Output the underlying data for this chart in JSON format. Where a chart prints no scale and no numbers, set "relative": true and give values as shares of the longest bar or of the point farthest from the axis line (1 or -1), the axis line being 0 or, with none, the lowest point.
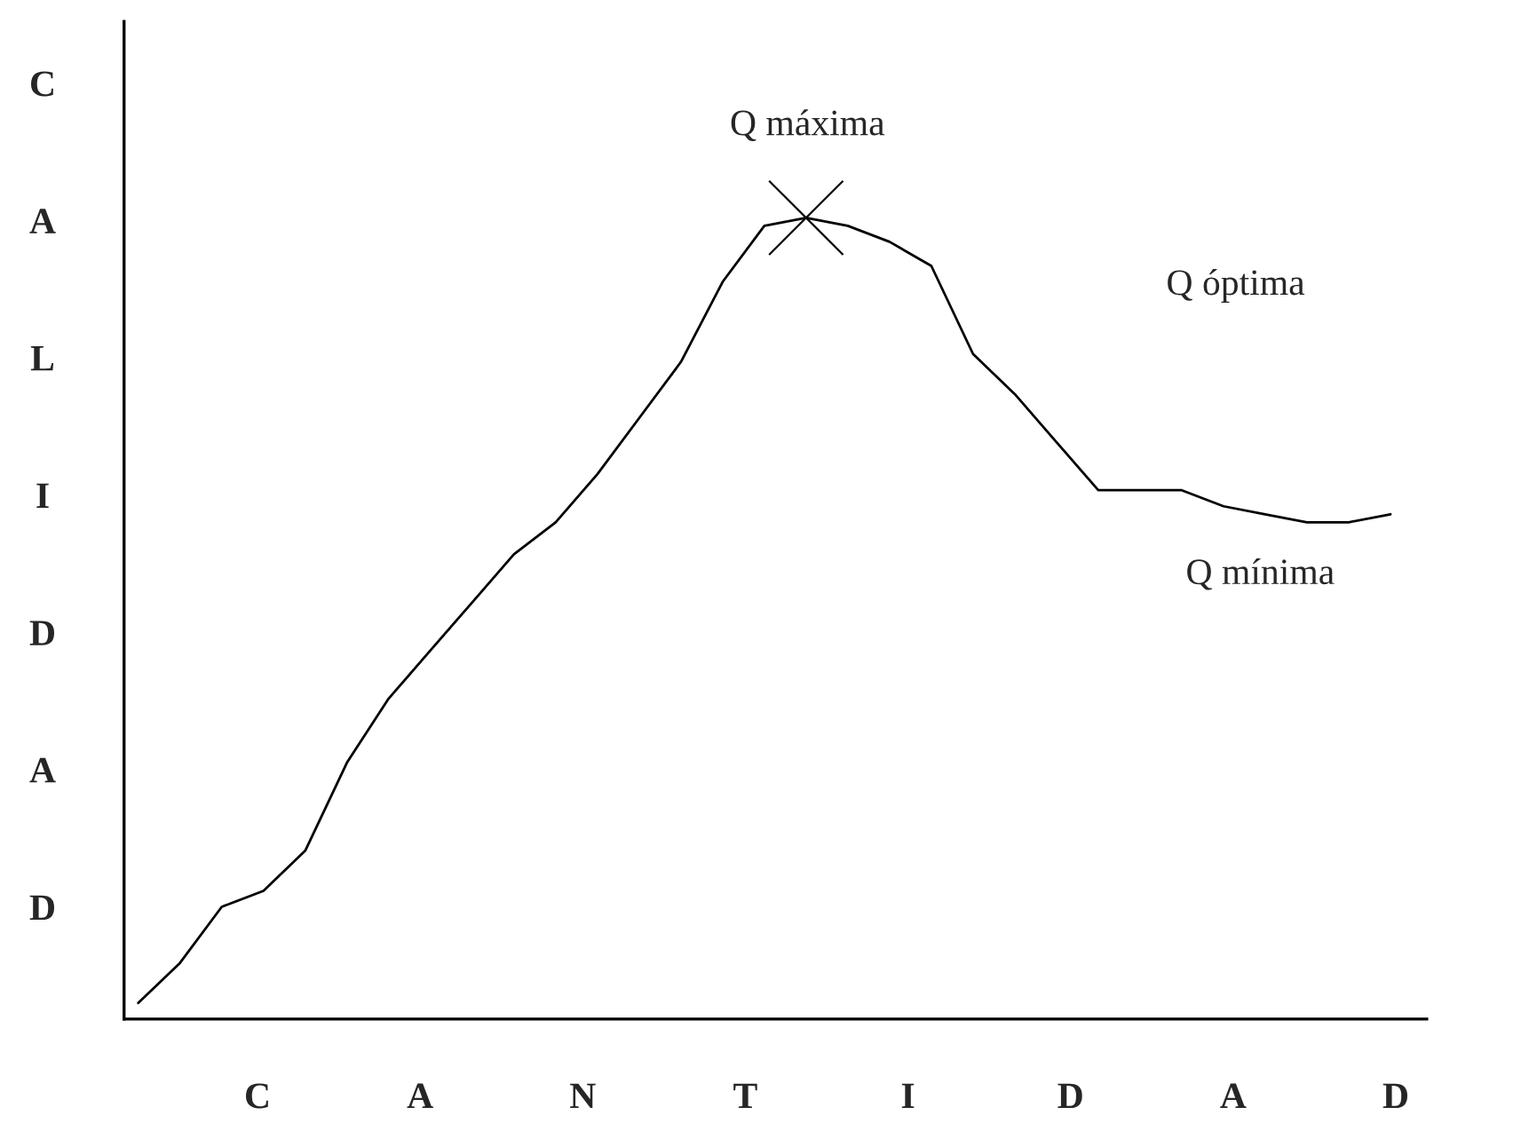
{
  "chart_data": {
    "type": "line",
    "relative": true,
    "xlabel": "C A N T I D A D",
    "ylabel": "C A L I D A D",
    "categories": [
      null,
      null,
      null,
      null,
      null,
      null,
      null,
      null,
      null,
      null,
      null,
      null,
      null,
      null,
      null,
      null,
      null,
      null,
      null,
      null,
      null,
      null,
      null,
      null,
      null,
      null,
      null,
      null,
      null,
      null,
      null
    ],
    "series": [
      {
        "color": "#000000",
        "values": [
          0.02,
          0.07,
          0.14,
          0.16,
          0.21,
          0.32,
          0.4,
          0.46,
          0.52,
          0.58,
          0.62,
          0.68,
          0.75,
          0.82,
          0.92,
          0.99,
          1,
          0.99,
          0.97,
          0.94,
          0.83,
          0.78,
          0.72,
          0.66,
          0.66,
          0.66,
          0.64,
          0.63,
          0.62,
          0.62,
          0.63
        ]
      }
    ],
    "annotations": [
      "Q máxima",
      "Q óptima",
      "Q mínima"
    ]
  }
}
